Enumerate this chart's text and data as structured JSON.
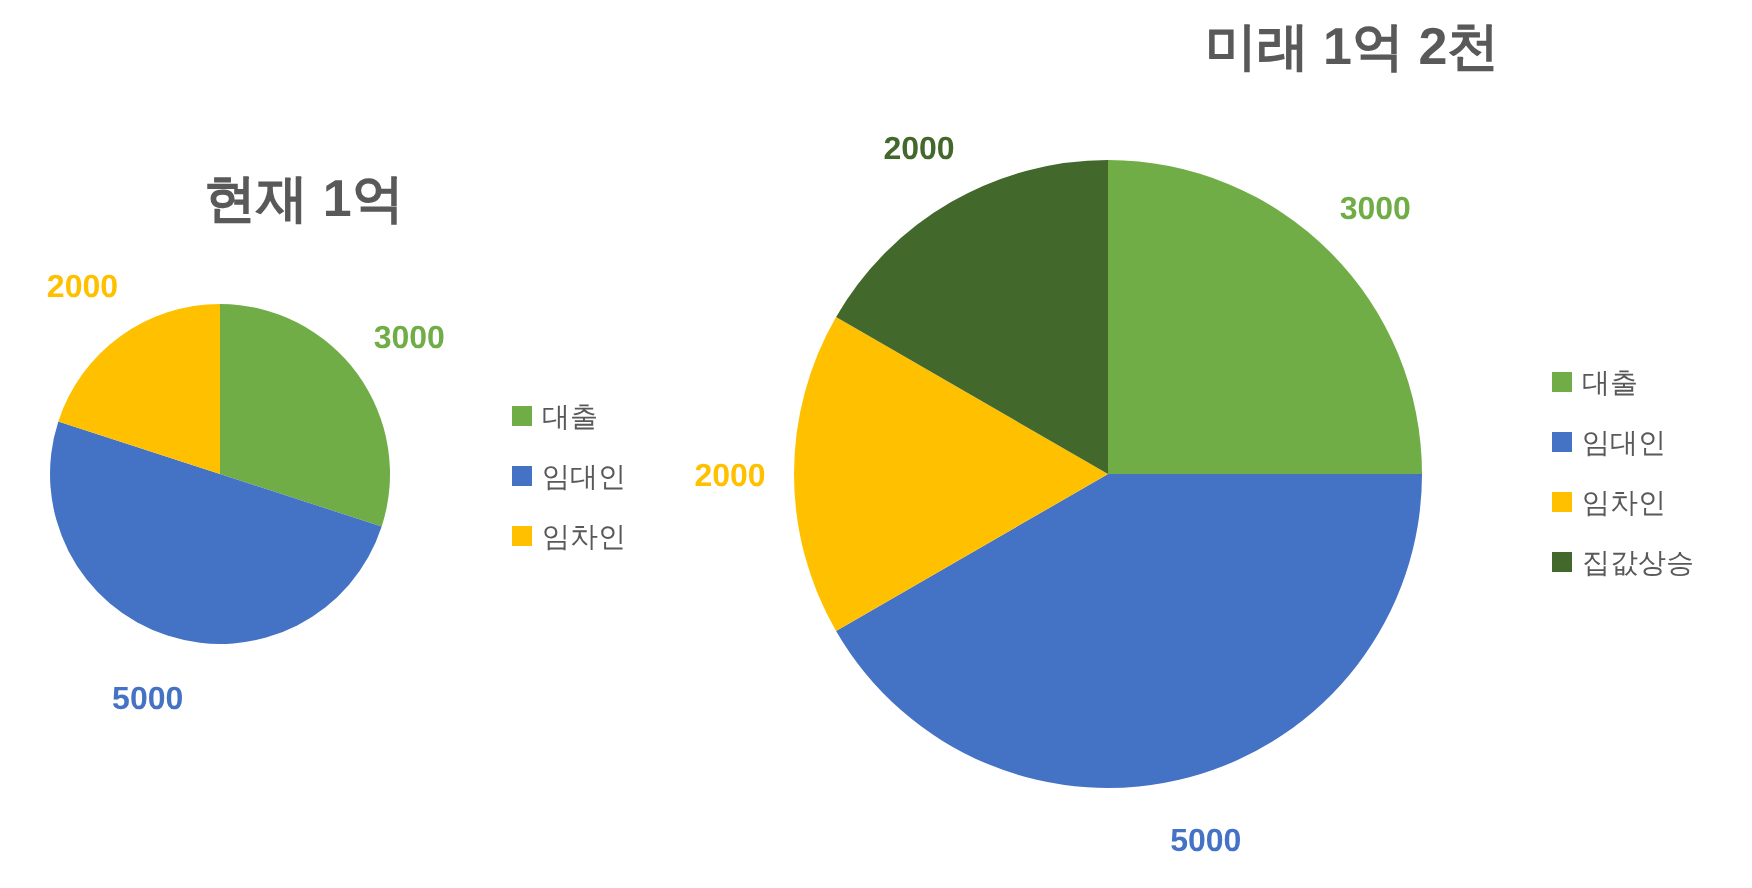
{
  "chart_data": [
    {
      "type": "pie",
      "title": "현재 1억",
      "categories": [
        "대출",
        "임대인",
        "임차인"
      ],
      "values": [
        3000,
        5000,
        2000
      ],
      "colors": [
        "#70ad47",
        "#4472c4",
        "#ffc000"
      ],
      "data_labels": true,
      "legend": "right"
    },
    {
      "type": "pie",
      "title": "미래 1억 2천",
      "categories": [
        "대출",
        "임대인",
        "임차인",
        "집값상승"
      ],
      "values": [
        3000,
        5000,
        2000,
        2000
      ],
      "colors": [
        "#70ad47",
        "#4472c4",
        "#ffc000",
        "#43682b"
      ],
      "data_labels": true,
      "legend": "right"
    }
  ]
}
